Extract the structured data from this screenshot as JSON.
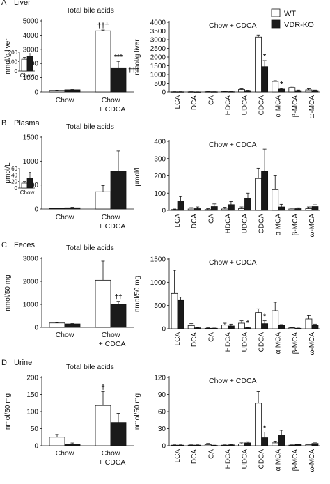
{
  "legend": {
    "items": [
      {
        "label": "WT",
        "color": "#ffffff"
      },
      {
        "label": "VDR-KO",
        "color": "#1a1a1a"
      }
    ]
  },
  "chart_data": [
    {
      "id": "A-total",
      "panel_letter": "A",
      "panel_name": "Liver",
      "type": "bar",
      "title": "Total bile acids",
      "ylabel": "nmol/g liver",
      "ylim": [
        0,
        5000
      ],
      "yticks": [
        0,
        1000,
        2000,
        3000,
        4000,
        5000
      ],
      "categories": [
        "Chow",
        "Chow\n+ CDCA"
      ],
      "series": [
        {
          "name": "WT",
          "values": [
            110,
            4300
          ],
          "errors": [
            15,
            60
          ]
        },
        {
          "name": "VDR-KO",
          "values": [
            150,
            1700
          ],
          "errors": [
            20,
            450
          ]
        }
      ],
      "annotations": [
        {
          "category": 1,
          "series": 0,
          "text": "†††"
        },
        {
          "category": 1,
          "series": 1,
          "text": "***"
        },
        {
          "category": 1,
          "series": 1,
          "text": "†††",
          "pos": "right"
        }
      ],
      "inset": {
        "ylim": [
          0,
          200
        ],
        "yticks": [
          0,
          100,
          200
        ],
        "category": "Chow",
        "values": [
          125,
          160
        ],
        "errors": [
          20,
          25
        ]
      }
    },
    {
      "id": "A-species",
      "panel_letter": "A",
      "type": "bar",
      "title": "Chow + CDCA",
      "ylabel": "nmol/g liver",
      "ylim": [
        0,
        4000
      ],
      "yticks": [
        0,
        500,
        1000,
        1500,
        2000,
        2500,
        3000,
        3500,
        4000
      ],
      "categories": [
        "LCA",
        "DCA",
        "CA",
        "HDCA",
        "UDCA",
        "CDCA",
        "α-MCA",
        "β-MCA",
        "ω-MCA"
      ],
      "series": [
        {
          "name": "WT",
          "values": [
            10,
            10,
            15,
            20,
            140,
            3150,
            600,
            250,
            120
          ],
          "errors": [
            5,
            5,
            5,
            10,
            40,
            120,
            40,
            80,
            60
          ]
        },
        {
          "name": "VDR-KO",
          "values": [
            10,
            5,
            10,
            15,
            80,
            1450,
            160,
            80,
            80
          ],
          "errors": [
            5,
            5,
            5,
            5,
            20,
            350,
            40,
            30,
            30
          ]
        }
      ],
      "annotations": [
        {
          "category": 5,
          "series": 1,
          "text": "*"
        },
        {
          "category": 6,
          "series": 1,
          "text": "*"
        }
      ]
    },
    {
      "id": "B-total",
      "panel_letter": "B",
      "panel_name": "Plasma",
      "type": "bar",
      "title": "Total bile acids",
      "ylabel": "μmol/L",
      "ylim": [
        0,
        1500
      ],
      "yticks": [
        0,
        500,
        1000,
        1500
      ],
      "categories": [
        "Chow",
        "Chow\n+ CDCA"
      ],
      "series": [
        {
          "name": "WT",
          "values": [
            10,
            360
          ],
          "errors": [
            3,
            130
          ]
        },
        {
          "name": "VDR-KO",
          "values": [
            25,
            790
          ],
          "errors": [
            10,
            420
          ]
        }
      ],
      "annotations": [],
      "inset": {
        "ylim": [
          0,
          60
        ],
        "yticks": [
          0,
          20,
          40,
          60
        ],
        "category": "Chow",
        "values": [
          15,
          30
        ],
        "errors": [
          5,
          18
        ]
      }
    },
    {
      "id": "B-species",
      "panel_letter": "B",
      "type": "bar",
      "title": "Chow + CDCA",
      "ylabel": "μmol/L",
      "ylim": [
        0,
        400
      ],
      "yticks": [
        0,
        100,
        200,
        300,
        400
      ],
      "categories": [
        "LCA",
        "DCA",
        "CA",
        "HDCA",
        "UDCA",
        "CDCA",
        "α-MCA",
        "β-MCA",
        "ω-MCA"
      ],
      "series": [
        {
          "name": "WT",
          "values": [
            5,
            8,
            5,
            8,
            10,
            185,
            120,
            8,
            10
          ],
          "errors": [
            3,
            8,
            5,
            10,
            10,
            60,
            80,
            5,
            10
          ]
        },
        {
          "name": "VDR-KO",
          "values": [
            55,
            10,
            22,
            33,
            70,
            225,
            20,
            10,
            22
          ],
          "errors": [
            25,
            10,
            15,
            18,
            30,
            130,
            15,
            5,
            10
          ]
        }
      ],
      "annotations": []
    },
    {
      "id": "C-total",
      "panel_letter": "C",
      "panel_name": "Feces",
      "type": "bar",
      "title": "Total bile acids",
      "ylabel": "nmol/50 mg",
      "ylim": [
        0,
        3000
      ],
      "yticks": [
        0,
        1000,
        2000,
        3000
      ],
      "categories": [
        "Chow",
        "Chow\n+ CDCA"
      ],
      "series": [
        {
          "name": "WT",
          "values": [
            190,
            2050
          ],
          "errors": [
            20,
            830
          ]
        },
        {
          "name": "VDR-KO",
          "values": [
            150,
            1000
          ],
          "errors": [
            15,
            130
          ]
        }
      ],
      "annotations": [
        {
          "category": 1,
          "series": 1,
          "text": "††"
        }
      ]
    },
    {
      "id": "C-species",
      "panel_letter": "C",
      "type": "bar",
      "title": "Chow + CDCA",
      "ylabel": "nmol/50 mg",
      "ylim": [
        0,
        1500
      ],
      "yticks": [
        0,
        500,
        1000,
        1500
      ],
      "categories": [
        "LCA",
        "DCA",
        "CA",
        "HDCA",
        "UDCA",
        "CDCA",
        "α-MCA",
        "β-MCA",
        "ω-MCA"
      ],
      "series": [
        {
          "name": "WT",
          "values": [
            760,
            70,
            10,
            80,
            120,
            350,
            390,
            20,
            210
          ],
          "errors": [
            500,
            40,
            10,
            40,
            50,
            80,
            180,
            10,
            70
          ]
        },
        {
          "name": "VDR-KO",
          "values": [
            610,
            20,
            10,
            60,
            20,
            110,
            70,
            10,
            70
          ],
          "errors": [
            70,
            10,
            5,
            40,
            10,
            60,
            20,
            5,
            30
          ]
        }
      ],
      "annotations": [
        {
          "category": 4,
          "series": 1,
          "text": "*"
        },
        {
          "category": 5,
          "series": 1,
          "text": "*"
        }
      ]
    },
    {
      "id": "D-total",
      "panel_letter": "D",
      "panel_name": "Urine",
      "type": "bar",
      "title": "Total bile acids",
      "ylabel": "nmol/50 mg",
      "ylim": [
        0,
        200
      ],
      "yticks": [
        0,
        50,
        100,
        150,
        200
      ],
      "categories": [
        "Chow",
        "Chow\n+ CDCA"
      ],
      "series": [
        {
          "name": "WT",
          "values": [
            25,
            118
          ],
          "errors": [
            8,
            40
          ]
        },
        {
          "name": "VDR-KO",
          "values": [
            5,
            68
          ],
          "errors": [
            3,
            27
          ]
        }
      ],
      "annotations": [
        {
          "category": 1,
          "series": 0,
          "text": "†"
        }
      ]
    },
    {
      "id": "D-species",
      "panel_letter": "D",
      "type": "bar",
      "title": "Chow + CDCA",
      "ylabel": "nmol/50 mg",
      "ylim": [
        0,
        120
      ],
      "yticks": [
        0,
        30,
        60,
        90,
        120
      ],
      "categories": [
        "LCA",
        "DCA",
        "CA",
        "HDCA",
        "UDCA",
        "CDCA",
        "α-MCA",
        "β-MCA",
        "ω-MCA"
      ],
      "series": [
        {
          "name": "WT",
          "values": [
            1,
            1,
            2,
            1,
            3,
            75,
            5,
            1,
            2
          ],
          "errors": [
            0.5,
            0.5,
            2,
            0.5,
            2,
            20,
            3,
            0.5,
            1
          ]
        },
        {
          "name": "VDR-KO",
          "values": [
            1,
            1,
            0.5,
            1.5,
            5,
            14,
            19,
            2,
            4
          ],
          "errors": [
            0.5,
            0.5,
            0.5,
            1,
            2,
            10,
            8,
            1,
            2
          ]
        }
      ],
      "annotations": [
        {
          "category": 5,
          "series": 1,
          "text": "*"
        }
      ]
    }
  ]
}
